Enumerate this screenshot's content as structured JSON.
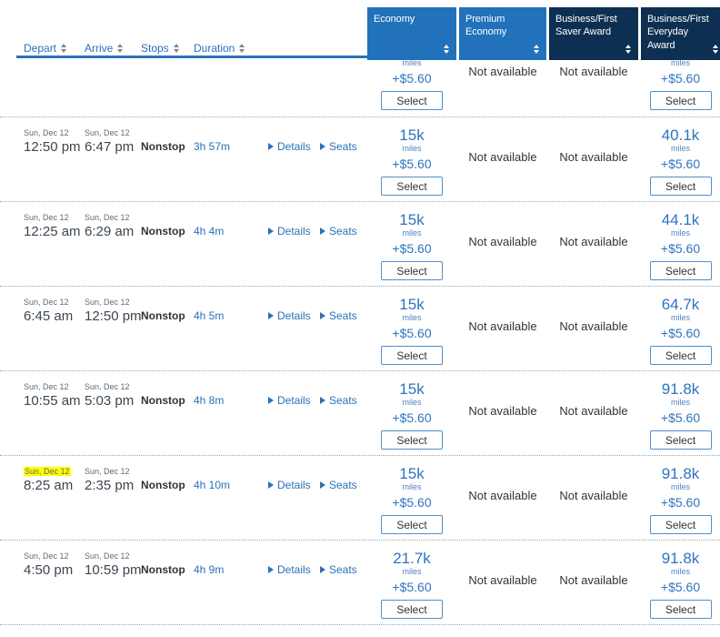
{
  "header": {
    "columns": [
      {
        "label": "Depart"
      },
      {
        "label": "Arrive"
      },
      {
        "label": "Stops"
      },
      {
        "label": "Duration"
      }
    ],
    "fare_columns": [
      {
        "label": "Economy",
        "theme": "light"
      },
      {
        "label": "Premium Economy",
        "theme": "light"
      },
      {
        "label": "Business/First Saver Award",
        "theme": "dark"
      },
      {
        "label": "Business/First Everyday Award",
        "theme": "dark"
      }
    ]
  },
  "labels": {
    "miles": "miles",
    "select": "Select",
    "not_available": "Not available",
    "details": "Details",
    "seats": "Seats"
  },
  "partial_row": {
    "fares": {
      "economy": {
        "fee": "+$5.60"
      },
      "premium": {
        "not_available": true
      },
      "saver": {
        "not_available": true
      },
      "everyday": {
        "fee": "+$5.60"
      }
    }
  },
  "rows": [
    {
      "depart": {
        "date": "Sun, Dec 12",
        "time": "12:50 pm",
        "highlight": false
      },
      "arrive": {
        "date": "Sun, Dec 12",
        "time": "6:47 pm"
      },
      "stops": "Nonstop",
      "duration": "3h 57m",
      "fares": {
        "economy": {
          "miles": "15k",
          "fee": "+$5.60"
        },
        "premium": {
          "not_available": true
        },
        "saver": {
          "not_available": true
        },
        "everyday": {
          "miles": "40.1k",
          "fee": "+$5.60"
        }
      }
    },
    {
      "depart": {
        "date": "Sun, Dec 12",
        "time": "12:25 am",
        "highlight": false
      },
      "arrive": {
        "date": "Sun, Dec 12",
        "time": "6:29 am"
      },
      "stops": "Nonstop",
      "duration": "4h 4m",
      "fares": {
        "economy": {
          "miles": "15k",
          "fee": "+$5.60"
        },
        "premium": {
          "not_available": true
        },
        "saver": {
          "not_available": true
        },
        "everyday": {
          "miles": "44.1k",
          "fee": "+$5.60"
        }
      }
    },
    {
      "depart": {
        "date": "Sun, Dec 12",
        "time": "6:45 am",
        "highlight": false
      },
      "arrive": {
        "date": "Sun, Dec 12",
        "time": "12:50 pm"
      },
      "stops": "Nonstop",
      "duration": "4h 5m",
      "fares": {
        "economy": {
          "miles": "15k",
          "fee": "+$5.60"
        },
        "premium": {
          "not_available": true
        },
        "saver": {
          "not_available": true
        },
        "everyday": {
          "miles": "64.7k",
          "fee": "+$5.60"
        }
      }
    },
    {
      "depart": {
        "date": "Sun, Dec 12",
        "time": "10:55 am",
        "highlight": false
      },
      "arrive": {
        "date": "Sun, Dec 12",
        "time": "5:03 pm"
      },
      "stops": "Nonstop",
      "duration": "4h 8m",
      "fares": {
        "economy": {
          "miles": "15k",
          "fee": "+$5.60"
        },
        "premium": {
          "not_available": true
        },
        "saver": {
          "not_available": true
        },
        "everyday": {
          "miles": "91.8k",
          "fee": "+$5.60"
        }
      }
    },
    {
      "depart": {
        "date": "Sun, Dec 12",
        "time": "8:25 am",
        "highlight": true
      },
      "arrive": {
        "date": "Sun, Dec 12",
        "time": "2:35 pm"
      },
      "stops": "Nonstop",
      "duration": "4h 10m",
      "fares": {
        "economy": {
          "miles": "15k",
          "fee": "+$5.60"
        },
        "premium": {
          "not_available": true
        },
        "saver": {
          "not_available": true
        },
        "everyday": {
          "miles": "91.8k",
          "fee": "+$5.60"
        }
      }
    },
    {
      "depart": {
        "date": "Sun, Dec 12",
        "time": "4:50 pm",
        "highlight": false
      },
      "arrive": {
        "date": "Sun, Dec 12",
        "time": "10:59 pm"
      },
      "stops": "Nonstop",
      "duration": "4h 9m",
      "fares": {
        "economy": {
          "miles": "21.7k",
          "fee": "+$5.60"
        },
        "premium": {
          "not_available": true
        },
        "saver": {
          "not_available": true
        },
        "everyday": {
          "miles": "91.8k",
          "fee": "+$5.60"
        }
      }
    }
  ],
  "colors": {
    "header_blue": "#2172ba",
    "header_navy": "#0d2f52",
    "link_blue": "#2b71b8",
    "fare_blue": "#2e74c0",
    "highlight_yellow": "#ffff00"
  }
}
